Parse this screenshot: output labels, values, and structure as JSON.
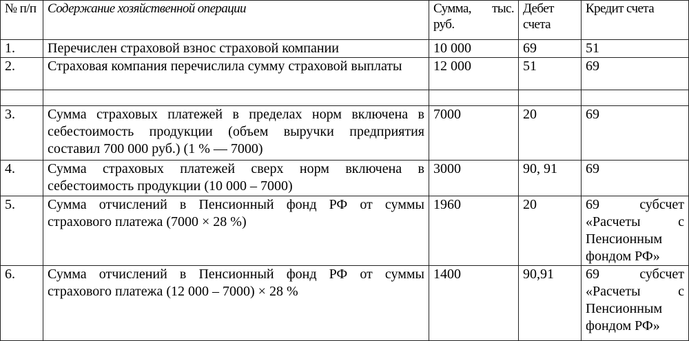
{
  "table": {
    "headers": [
      "№ п/п",
      "Содержание хозяйственной операции",
      "Сумма, тыс. руб.",
      "Дебет счета",
      "Кредит счета"
    ],
    "rows": [
      [
        "1.",
        "Перечислен страховой взнос страховой компании",
        "10 000",
        "69",
        "51"
      ],
      [
        "2.",
        "Страховая компания перечислила сумму страховой выплаты",
        "12 000",
        "51",
        "69"
      ],
      [
        "",
        "",
        "",
        "",
        ""
      ],
      [
        "3.",
        "Сумма страховых платежей в пределах норм включена в себестоимость продукции (объем выручки предприятия составил 700 000 руб.) (1 % — 7000)",
        "7000",
        "20",
        "69"
      ],
      [
        "4.",
        "Сумма страховых платежей сверх норм включена в себестоимость продукции (10 000 – 7000)",
        "3000",
        "90, 91",
        "69"
      ],
      [
        "5.",
        "Сумма отчислений в Пенсионный фонд РФ от суммы страхового платежа (7000 × 28 %)",
        "1960",
        "20",
        "69 субсчет «Расчеты с Пенсионным фондом РФ»"
      ],
      [
        "6.",
        "Сумма отчислений в Пенсионный фонд РФ от суммы страхового платежа (12 000 – 7000) × 28 %",
        "1400",
        "90,91",
        "69 субсчет «Расчеты с Пенсионным фондом РФ»"
      ]
    ]
  }
}
